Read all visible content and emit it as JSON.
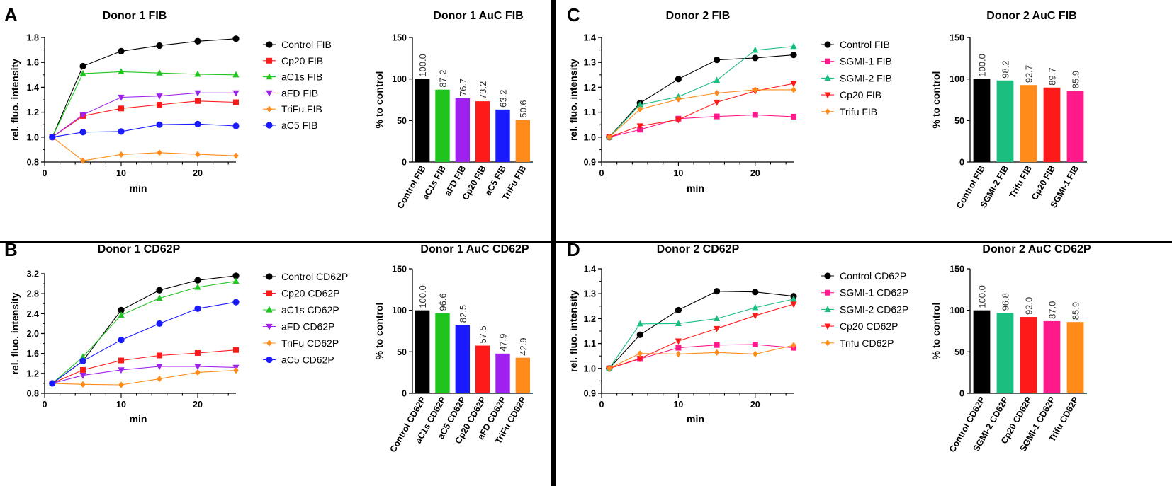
{
  "panels": [
    {
      "letter": "A"
    },
    {
      "letter": "B"
    },
    {
      "letter": "C"
    },
    {
      "letter": "D"
    }
  ],
  "chart_data": [
    {
      "panel": "A",
      "type": "line",
      "title": "Donor 1 FIB",
      "xlabel": "min",
      "ylabel": "rel. fluo. intensity",
      "xlim": [
        0,
        25
      ],
      "xticks": [
        0,
        10,
        20
      ],
      "ylim": [
        0.8,
        1.8
      ],
      "yticks": [
        0.8,
        1.0,
        1.2,
        1.4,
        1.6,
        1.8
      ],
      "ytick_labels": [
        "0.8",
        "1.0",
        "1.2",
        "1.4",
        "1.6",
        "1.8"
      ],
      "x": [
        1,
        5,
        10,
        15,
        20,
        25
      ],
      "series": [
        {
          "name": "Control FIB",
          "color": "#000000",
          "marker": "circle",
          "values": [
            1.0,
            1.57,
            1.69,
            1.735,
            1.77,
            1.79
          ]
        },
        {
          "name": "Cp20 FIB",
          "color": "#ff1a1a",
          "marker": "square",
          "values": [
            1.0,
            1.17,
            1.23,
            1.26,
            1.29,
            1.28
          ]
        },
        {
          "name": "aC1s FIB",
          "color": "#1fc41f",
          "marker": "triangle-up",
          "values": [
            1.0,
            1.51,
            1.525,
            1.515,
            1.505,
            1.5
          ]
        },
        {
          "name": "aFD FIB",
          "color": "#a020f0",
          "marker": "triangle-down",
          "values": [
            1.0,
            1.18,
            1.32,
            1.33,
            1.355,
            1.355
          ]
        },
        {
          "name": "TriFu FIB",
          "color": "#ff8c1a",
          "marker": "diamond",
          "values": [
            1.0,
            0.81,
            0.86,
            0.875,
            0.862,
            0.85
          ]
        },
        {
          "name": "aC5 FIB",
          "color": "#1a1aff",
          "marker": "circle",
          "values": [
            1.0,
            1.04,
            1.045,
            1.1,
            1.105,
            1.09
          ]
        }
      ]
    },
    {
      "panel": "A",
      "type": "bar",
      "title": "Donor 1 AuC FIB",
      "ylabel": "% to control",
      "ylim": [
        0,
        150
      ],
      "yticks": [
        0,
        50,
        100,
        150
      ],
      "categories": [
        "Control FIB",
        "aC1s FIB",
        "aFD FIB",
        "Cp20 FIB",
        "aC5 FIB",
        "TriFu FIB"
      ],
      "values": [
        100.0,
        87.2,
        76.7,
        73.2,
        63.2,
        50.6
      ],
      "value_labels": [
        "100.0",
        "87.2",
        "76.7",
        "73.2",
        "63.2",
        "50.6"
      ],
      "colors": [
        "#000000",
        "#1fc41f",
        "#a020f0",
        "#ff1a1a",
        "#1a1aff",
        "#ff8c1a"
      ]
    },
    {
      "panel": "B",
      "type": "line",
      "title": "Donor 1 CD62P",
      "xlabel": "min",
      "ylabel": "rel. fluo. intensity",
      "xlim": [
        0,
        25
      ],
      "xticks": [
        0,
        10,
        20
      ],
      "ylim": [
        0.8,
        3.2
      ],
      "yticks": [
        0.8,
        1.2,
        1.6,
        2.0,
        2.4,
        2.8,
        3.2
      ],
      "ytick_labels": [
        "0.8",
        "1.2",
        "1.6",
        "2.0",
        "2.4",
        "2.8",
        "3.2"
      ],
      "x": [
        1,
        5,
        10,
        15,
        20,
        25
      ],
      "series": [
        {
          "name": "Control CD62P",
          "color": "#000000",
          "marker": "circle",
          "values": [
            1.0,
            1.45,
            2.47,
            2.87,
            3.07,
            3.16
          ]
        },
        {
          "name": "Cp20 CD62P",
          "color": "#ff1a1a",
          "marker": "square",
          "values": [
            1.0,
            1.27,
            1.46,
            1.56,
            1.61,
            1.67
          ]
        },
        {
          "name": "aC1s CD62P",
          "color": "#1fc41f",
          "marker": "triangle-up",
          "values": [
            1.0,
            1.53,
            2.37,
            2.71,
            2.93,
            3.05
          ]
        },
        {
          "name": "aFD CD62P",
          "color": "#a020f0",
          "marker": "triangle-down",
          "values": [
            1.0,
            1.16,
            1.27,
            1.34,
            1.34,
            1.32
          ]
        },
        {
          "name": "TriFu CD62P",
          "color": "#ff8c1a",
          "marker": "diamond",
          "values": [
            1.0,
            0.98,
            0.97,
            1.09,
            1.22,
            1.26
          ]
        },
        {
          "name": "aC5 CD62P",
          "color": "#1a1aff",
          "marker": "circle",
          "values": [
            1.0,
            1.45,
            1.87,
            2.2,
            2.5,
            2.63
          ]
        }
      ]
    },
    {
      "panel": "B",
      "type": "bar",
      "title": "Donor 1 AuC CD62P",
      "ylabel": "% to control",
      "ylim": [
        0,
        150
      ],
      "yticks": [
        0,
        50,
        100,
        150
      ],
      "categories": [
        "Control CD62P",
        "aC1s CD62P",
        "aC5 CD62P",
        "Cp20 CD62P",
        "aFD CD62P",
        "TriFu CD62P"
      ],
      "values": [
        100.0,
        96.6,
        82.5,
        57.5,
        47.9,
        42.9
      ],
      "value_labels": [
        "100.0",
        "96.6",
        "82.5",
        "57.5",
        "47.9",
        "42.9"
      ],
      "colors": [
        "#000000",
        "#1fc41f",
        "#1a1aff",
        "#ff1a1a",
        "#a020f0",
        "#ff8c1a"
      ]
    },
    {
      "panel": "C",
      "type": "line",
      "title": "Donor 2 FIB",
      "xlabel": "min",
      "ylabel": "rel. fluo. intensity",
      "xlim": [
        0,
        25
      ],
      "xticks": [
        0,
        10,
        20
      ],
      "ylim": [
        0.9,
        1.4
      ],
      "yticks": [
        0.9,
        1.0,
        1.1,
        1.2,
        1.3,
        1.4
      ],
      "ytick_labels": [
        "0.9",
        "1.0",
        "1.1",
        "1.2",
        "1.3",
        "1.4"
      ],
      "x": [
        1,
        5,
        10,
        15,
        20,
        25
      ],
      "series": [
        {
          "name": "Control FIB",
          "color": "#000000",
          "marker": "circle",
          "values": [
            1.0,
            1.137,
            1.233,
            1.31,
            1.318,
            1.33
          ]
        },
        {
          "name": "SGMI-1 FIB",
          "color": "#ff1a8c",
          "marker": "square",
          "values": [
            1.0,
            1.03,
            1.074,
            1.083,
            1.089,
            1.082
          ]
        },
        {
          "name": "SGMI-2 FIB",
          "color": "#1abf80",
          "marker": "triangle-up",
          "values": [
            1.0,
            1.13,
            1.162,
            1.228,
            1.349,
            1.364
          ]
        },
        {
          "name": "Cp20 FIB",
          "color": "#ff1a1a",
          "marker": "triangle-down",
          "values": [
            1.0,
            1.045,
            1.07,
            1.14,
            1.185,
            1.215
          ]
        },
        {
          "name": "Trifu FIB",
          "color": "#ff8c1a",
          "marker": "diamond",
          "values": [
            1.0,
            1.112,
            1.152,
            1.177,
            1.19,
            1.19
          ]
        }
      ]
    },
    {
      "panel": "C",
      "type": "bar",
      "title": "Donor 2 AuC FIB",
      "ylabel": "% to control",
      "ylim": [
        0,
        150
      ],
      "yticks": [
        0,
        50,
        100,
        150
      ],
      "categories": [
        "Control FIB",
        "SGMI-2 FIB",
        "Trifu FIB",
        "Cp20 FIB",
        "SGMI-1 FIB"
      ],
      "values": [
        100.0,
        98.2,
        92.7,
        89.7,
        85.9
      ],
      "value_labels": [
        "100.0",
        "98.2",
        "92.7",
        "89.7",
        "85.9"
      ],
      "colors": [
        "#000000",
        "#1abf80",
        "#ff8c1a",
        "#ff1a1a",
        "#ff1a8c"
      ]
    },
    {
      "panel": "D",
      "type": "line",
      "title": "Donor 2 CD62P",
      "xlabel": "min",
      "ylabel": "rel. fluo. intensity",
      "xlim": [
        0,
        25
      ],
      "xticks": [
        0,
        10,
        20
      ],
      "ylim": [
        0.9,
        1.4
      ],
      "yticks": [
        0.9,
        1.0,
        1.1,
        1.2,
        1.3,
        1.4
      ],
      "ytick_labels": [
        "0.9",
        "1.0",
        "1.1",
        "1.2",
        "1.3",
        "1.4"
      ],
      "x": [
        1,
        5,
        10,
        15,
        20,
        25
      ],
      "series": [
        {
          "name": "Control CD62P",
          "color": "#000000",
          "marker": "circle",
          "values": [
            1.0,
            1.135,
            1.234,
            1.31,
            1.307,
            1.29
          ]
        },
        {
          "name": "SGMI-1 CD62P",
          "color": "#ff1a8c",
          "marker": "square",
          "values": [
            1.0,
            1.038,
            1.083,
            1.094,
            1.096,
            1.083
          ]
        },
        {
          "name": "SGMI-2 CD62P",
          "color": "#1abf80",
          "marker": "triangle-up",
          "values": [
            1.0,
            1.179,
            1.18,
            1.2,
            1.244,
            1.278
          ]
        },
        {
          "name": "Cp20 CD62P",
          "color": "#ff1a1a",
          "marker": "triangle-down",
          "values": [
            1.0,
            1.04,
            1.11,
            1.16,
            1.212,
            1.258
          ]
        },
        {
          "name": "Trifu CD62P",
          "color": "#ff8c1a",
          "marker": "diamond",
          "values": [
            1.0,
            1.06,
            1.058,
            1.064,
            1.058,
            1.093
          ]
        }
      ]
    },
    {
      "panel": "D",
      "type": "bar",
      "title": "Donor 2 AuC CD62P",
      "ylabel": "% to control",
      "ylim": [
        0,
        150
      ],
      "yticks": [
        0,
        50,
        100,
        150
      ],
      "categories": [
        "Control CD62P",
        "SGMI-2 CD62P",
        "Cp20 CD62P",
        "SGMI-1 CD62P",
        "Trifu CD62P"
      ],
      "values": [
        100.0,
        96.8,
        92.0,
        87.0,
        85.9
      ],
      "value_labels": [
        "100.0",
        "96.8",
        "92.0",
        "87.0",
        "85.9"
      ],
      "colors": [
        "#000000",
        "#1abf80",
        "#ff1a1a",
        "#ff1a8c",
        "#ff8c1a"
      ]
    }
  ]
}
